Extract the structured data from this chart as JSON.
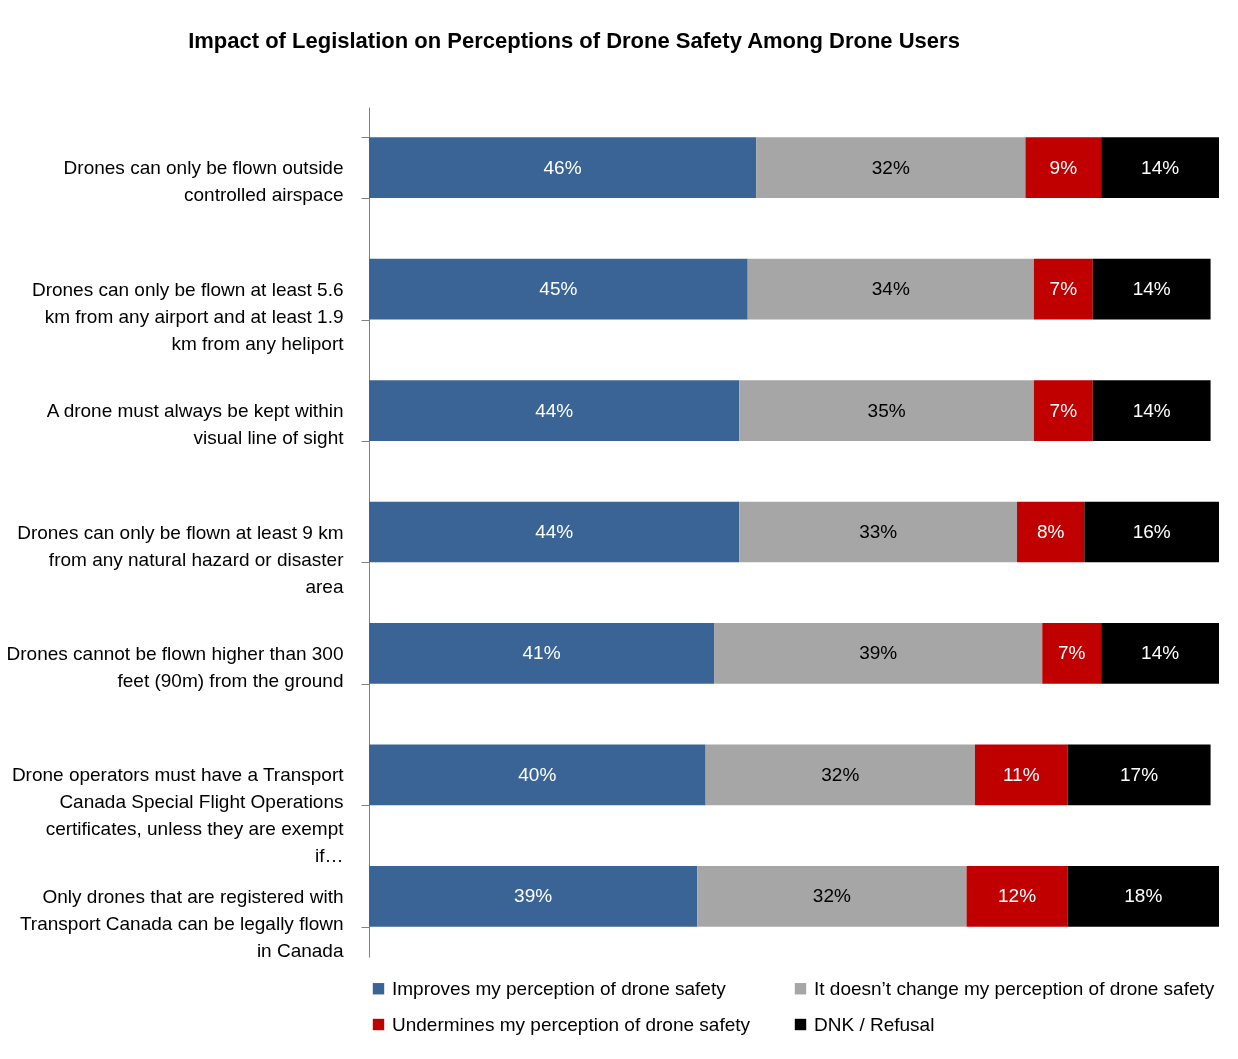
{
  "chart_data": {
    "type": "bar",
    "orientation": "horizontal",
    "stacked": true,
    "title": "Impact of Legislation on Perceptions of Drone Safety Among Drone Users",
    "categories": [
      "Drones can only be flown outside controlled airspace",
      "Drones can only be flown at least 5.6 km from any airport and at least 1.9 km from any heliport",
      "A drone must always be kept within visual line of sight",
      "Drones can only be flown at least 9 km from any natural hazard or disaster area",
      "Drones cannot be flown higher than 300 feet (90m) from the ground",
      "Drone operators must have a Transport Canada Special Flight Operations certificates, unless they are exempt if…",
      "Only drones that are registered with Transport Canada can be legally flown in Canada"
    ],
    "series": [
      {
        "name": "Improves my perception of drone safety",
        "color": "#3a6496",
        "values": [
          46,
          45,
          44,
          44,
          41,
          40,
          39
        ],
        "value_labels": [
          "46%",
          "45%",
          "44%",
          "44%",
          "41%",
          "40%",
          "39%"
        ]
      },
      {
        "name": "It doesn’t change my perception of drone safety",
        "color": "#a6a6a6",
        "values": [
          32,
          34,
          35,
          33,
          39,
          32,
          32
        ],
        "value_labels": [
          "32%",
          "34%",
          "35%",
          "33%",
          "39%",
          "32%",
          "32%"
        ]
      },
      {
        "name": "Undermines my perception of drone safety",
        "color": "#c00000",
        "values": [
          9,
          7,
          7,
          8,
          7,
          11,
          12
        ],
        "value_labels": [
          "9%",
          "7%",
          "7%",
          "8%",
          "7%",
          "11%",
          "12%"
        ]
      },
      {
        "name": "DNK / Refusal",
        "color": "#000000",
        "values": [
          14,
          14,
          14,
          16,
          14,
          17,
          18
        ],
        "value_labels": [
          "14%",
          "14%",
          "14%",
          "16%",
          "14%",
          "17%",
          "18%"
        ]
      }
    ],
    "legend": "bottom"
  }
}
